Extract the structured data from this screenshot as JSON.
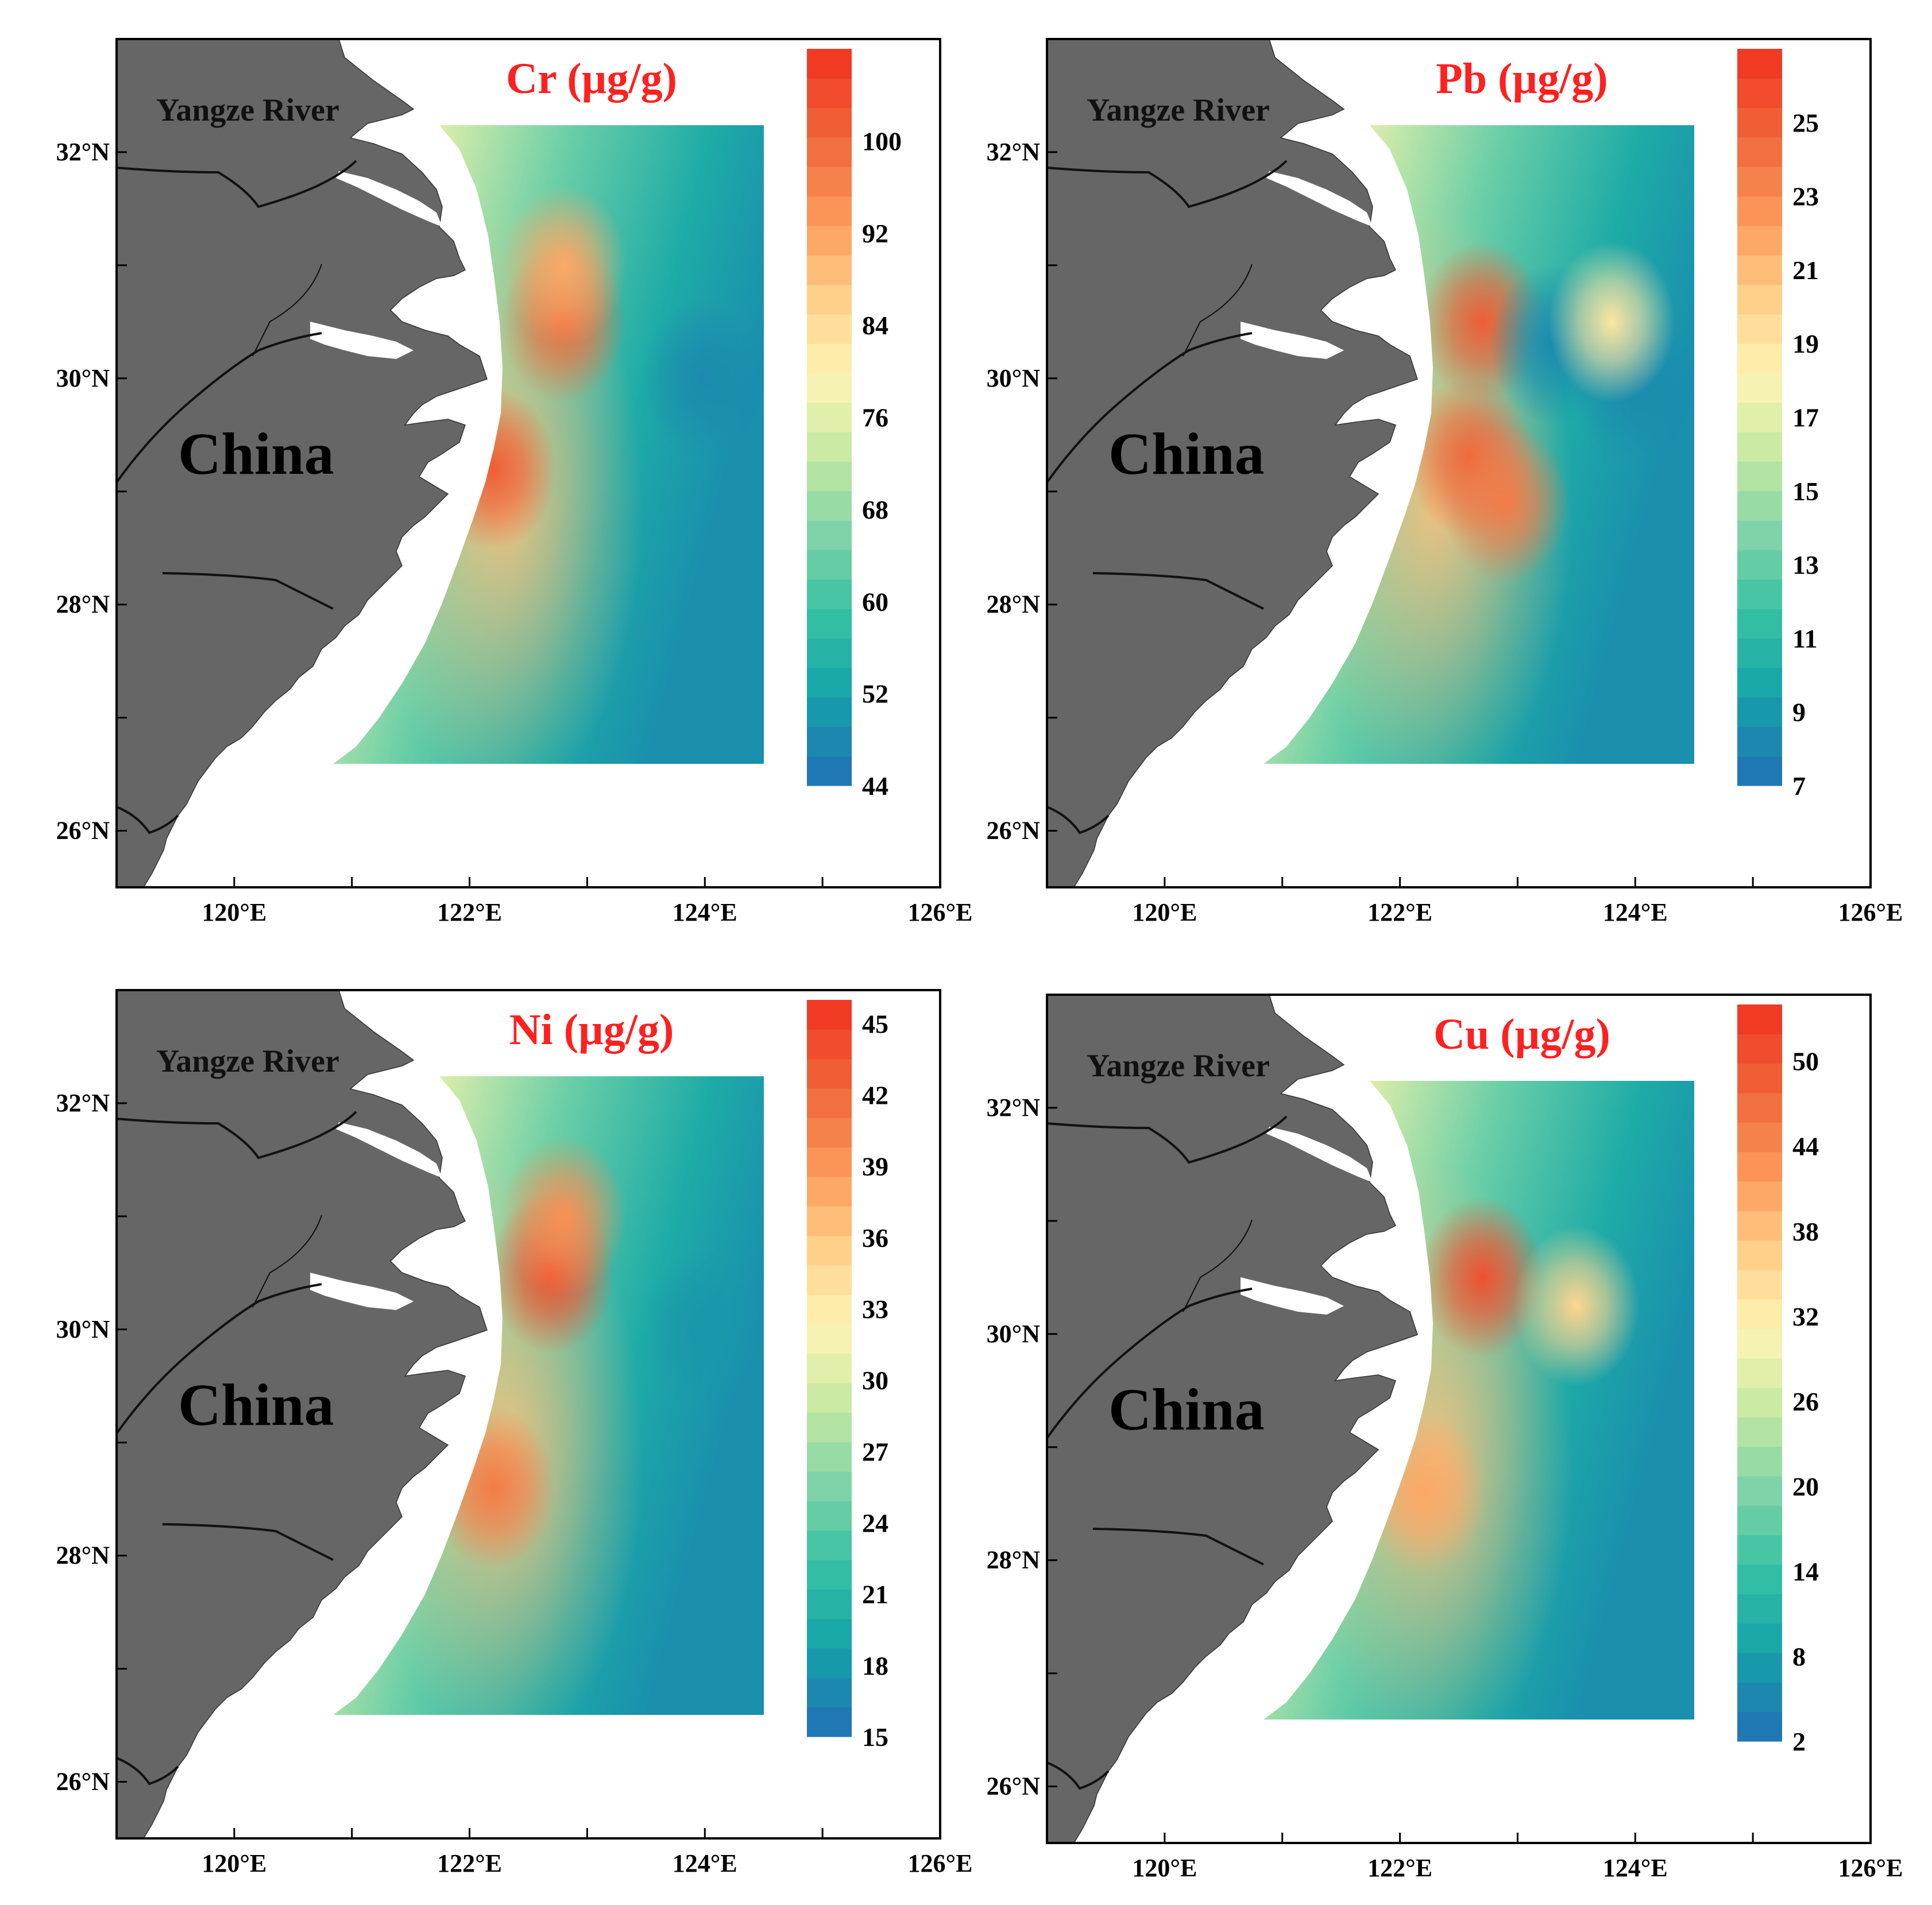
{
  "figure": {
    "x_ticks": [
      "120°E",
      "122°E",
      "124°E",
      "126°E"
    ],
    "y_ticks": [
      "26°N",
      "28°N",
      "30°N",
      "32°N"
    ],
    "x_extent_deg": [
      119,
      126
    ],
    "y_extent_deg": [
      25.5,
      33
    ],
    "land_color": "#666666",
    "labels": {
      "river": "Yangze River",
      "country": "China"
    },
    "title_color": "#ff2020",
    "colormap": [
      "#1f78b4",
      "#16a3a8",
      "#36c2a3",
      "#7fd3a8",
      "#c4e8a0",
      "#fdf5b4",
      "#fed08a",
      "#fc9a5a",
      "#f06a3c",
      "#f03a24"
    ]
  },
  "panels": [
    {
      "id": "cr",
      "title": "Cr (µg/g)",
      "colorbar_ticks": [
        "44",
        "52",
        "60",
        "68",
        "76",
        "84",
        "92",
        "100"
      ],
      "colorbar_range": [
        44,
        108
      ],
      "hotspots": [
        {
          "lon": 122.2,
          "lat": 29.2,
          "level": 0.92
        },
        {
          "lon": 122.8,
          "lat": 30.5,
          "level": 0.88
        },
        {
          "lon": 122.8,
          "lat": 31.0,
          "level": 0.75
        },
        {
          "lon": 124.0,
          "lat": 30.0,
          "level": 0.05
        }
      ]
    },
    {
      "id": "pb",
      "title": "Pb (µg/g)",
      "colorbar_ticks": [
        "7",
        "9",
        "11",
        "13",
        "15",
        "17",
        "19",
        "21",
        "23",
        "25"
      ],
      "colorbar_range": [
        7,
        27
      ],
      "hotspots": [
        {
          "lon": 122.7,
          "lat": 30.5,
          "level": 0.92
        },
        {
          "lon": 122.6,
          "lat": 29.3,
          "level": 0.9
        },
        {
          "lon": 122.9,
          "lat": 28.9,
          "level": 0.85
        },
        {
          "lon": 123.3,
          "lat": 30.3,
          "level": 0.05
        },
        {
          "lon": 124.0,
          "lat": 29.95,
          "level": 0.05
        },
        {
          "lon": 123.8,
          "lat": 30.5,
          "level": 0.6
        }
      ]
    },
    {
      "id": "ni",
      "title": "Ni (µg/g)",
      "colorbar_ticks": [
        "15",
        "18",
        "21",
        "24",
        "27",
        "30",
        "33",
        "36",
        "39",
        "42",
        "45"
      ],
      "colorbar_range": [
        15,
        46
      ],
      "hotspots": [
        {
          "lon": 122.7,
          "lat": 30.5,
          "level": 0.95
        },
        {
          "lon": 122.8,
          "lat": 31.0,
          "level": 0.8
        },
        {
          "lon": 122.2,
          "lat": 28.6,
          "level": 0.85
        },
        {
          "lon": 124.0,
          "lat": 30.0,
          "level": 0.08
        }
      ]
    },
    {
      "id": "cu",
      "title": "Cu (µg/g)",
      "colorbar_ticks": [
        "2",
        "8",
        "14",
        "20",
        "26",
        "32",
        "38",
        "44",
        "50"
      ],
      "colorbar_range": [
        2,
        54
      ],
      "hotspots": [
        {
          "lon": 122.7,
          "lat": 30.5,
          "level": 0.95
        },
        {
          "lon": 123.5,
          "lat": 30.25,
          "level": 0.65
        },
        {
          "lon": 122.2,
          "lat": 28.6,
          "level": 0.75
        }
      ]
    }
  ]
}
